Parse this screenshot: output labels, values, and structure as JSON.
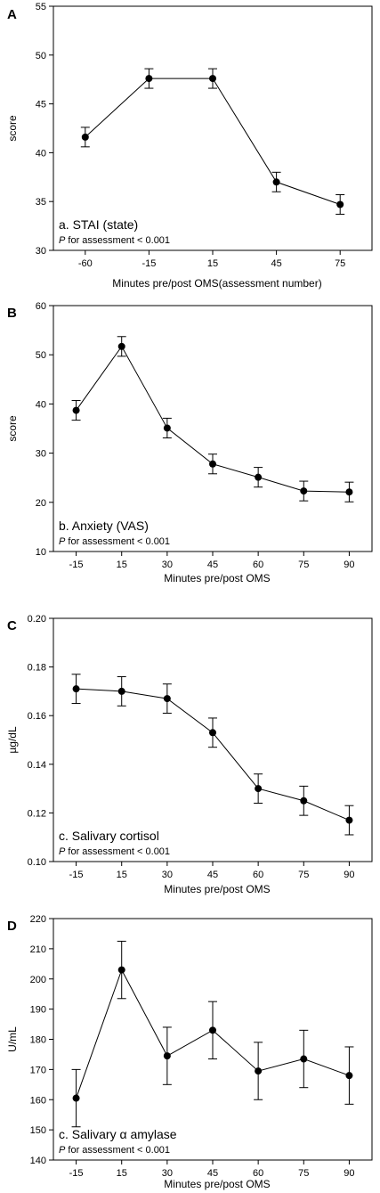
{
  "chart_data": [
    {
      "type": "line",
      "panel_label": "A",
      "categories": [
        "-60",
        "-15",
        "15",
        "45",
        "75"
      ],
      "series": [
        {
          "values": [
            41.6,
            47.6,
            47.6,
            37.0,
            34.7
          ],
          "error": [
            1.0,
            1.0,
            1.0,
            1.0,
            1.0
          ]
        }
      ],
      "xlabel": "Minutes pre/post OMS(assessment number)",
      "ylabel": "score",
      "ylim": [
        30,
        55
      ],
      "yticks": [
        "30",
        "35",
        "40",
        "45",
        "50",
        "55"
      ],
      "annotation": "a. STAI (state)",
      "p_italic": "P",
      "p_rest": " for assessment < 0.001"
    },
    {
      "type": "line",
      "panel_label": "B",
      "categories": [
        "-15",
        "15",
        "30",
        "45",
        "60",
        "75",
        "90"
      ],
      "series": [
        {
          "values": [
            38.7,
            51.7,
            35.1,
            27.8,
            25.1,
            22.3,
            22.1
          ],
          "error": [
            2.0,
            2.0,
            2.0,
            2.0,
            2.0,
            2.0,
            2.0
          ]
        }
      ],
      "xlabel": "Minutes pre/post OMS",
      "ylabel": "score",
      "ylim": [
        10,
        60
      ],
      "yticks": [
        "10",
        "20",
        "30",
        "40",
        "50",
        "60"
      ],
      "annotation": "b. Anxiety (VAS)",
      "p_italic": "P",
      "p_rest": " for assessment < 0.001"
    },
    {
      "type": "line",
      "panel_label": "C",
      "categories": [
        "-15",
        "15",
        "30",
        "45",
        "60",
        "75",
        "90"
      ],
      "series": [
        {
          "values": [
            0.171,
            0.17,
            0.167,
            0.153,
            0.13,
            0.125,
            0.117
          ],
          "error": [
            0.006,
            0.006,
            0.006,
            0.006,
            0.006,
            0.006,
            0.006
          ]
        }
      ],
      "xlabel": "Minutes pre/post OMS",
      "ylabel": "µg/dL",
      "ylim": [
        0.1,
        0.2
      ],
      "yticks": [
        "0.10",
        "0.12",
        "0.14",
        "0.16",
        "0.18",
        "0.20"
      ],
      "annotation": "c. Salivary cortisol",
      "p_italic": "P",
      "p_rest": " for assessment < 0.001"
    },
    {
      "type": "line",
      "panel_label": "D",
      "categories": [
        "-15",
        "15",
        "30",
        "45",
        "60",
        "75",
        "90"
      ],
      "series": [
        {
          "values": [
            160.5,
            203.0,
            174.5,
            183.0,
            169.5,
            173.5,
            168.0
          ],
          "error": [
            9.5,
            9.5,
            9.5,
            9.5,
            9.5,
            9.5,
            9.5
          ]
        }
      ],
      "xlabel": "Minutes pre/post OMS",
      "ylabel": "U/mL",
      "ylim": [
        140,
        220
      ],
      "yticks": [
        "140",
        "150",
        "160",
        "170",
        "180",
        "190",
        "200",
        "210",
        "220"
      ],
      "annotation": "c. Salivary α amylase",
      "p_italic": "P",
      "p_rest": " for assessment < 0.001"
    }
  ]
}
